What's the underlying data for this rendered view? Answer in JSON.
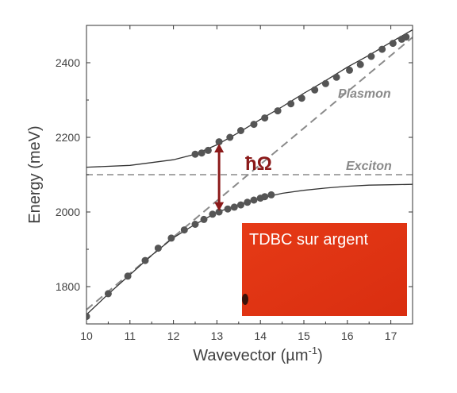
{
  "chart_data": {
    "type": "scatter",
    "xlabel_main": "Wavevector (µm",
    "xlabel_sup": "-1",
    "xlabel_end": ")",
    "ylabel": "Energy (meV)",
    "xlim": [
      10,
      17.5
    ],
    "ylim": [
      1700,
      2500
    ],
    "xticks": [
      "10",
      "11",
      "12",
      "13",
      "14",
      "15",
      "16",
      "17"
    ],
    "yticks": [
      "1800",
      "2000",
      "2200",
      "2400"
    ],
    "xtick_values": [
      10,
      11,
      12,
      13,
      14,
      15,
      16,
      17
    ],
    "ytick_values": [
      1800,
      2000,
      2200,
      2400
    ],
    "upper_branch_points": [
      {
        "x": 12.5,
        "y": 2155
      },
      {
        "x": 12.65,
        "y": 2158
      },
      {
        "x": 12.8,
        "y": 2165
      },
      {
        "x": 13.05,
        "y": 2188
      },
      {
        "x": 13.3,
        "y": 2200
      },
      {
        "x": 13.55,
        "y": 2218
      },
      {
        "x": 13.85,
        "y": 2235
      },
      {
        "x": 14.1,
        "y": 2252
      },
      {
        "x": 14.4,
        "y": 2271
      },
      {
        "x": 14.7,
        "y": 2290
      },
      {
        "x": 14.95,
        "y": 2305
      },
      {
        "x": 15.25,
        "y": 2327
      },
      {
        "x": 15.5,
        "y": 2344
      },
      {
        "x": 15.75,
        "y": 2361
      },
      {
        "x": 16.05,
        "y": 2380
      },
      {
        "x": 16.3,
        "y": 2395
      },
      {
        "x": 16.55,
        "y": 2417
      },
      {
        "x": 16.8,
        "y": 2436
      },
      {
        "x": 17.05,
        "y": 2452
      },
      {
        "x": 17.25,
        "y": 2463
      },
      {
        "x": 17.35,
        "y": 2469
      }
    ],
    "lower_branch_points": [
      {
        "x": 10.0,
        "y": 1720
      },
      {
        "x": 10.5,
        "y": 1781
      },
      {
        "x": 10.95,
        "y": 1828
      },
      {
        "x": 11.35,
        "y": 1870
      },
      {
        "x": 11.65,
        "y": 1903
      },
      {
        "x": 11.95,
        "y": 1930
      },
      {
        "x": 12.25,
        "y": 1952
      },
      {
        "x": 12.5,
        "y": 1967
      },
      {
        "x": 12.7,
        "y": 1980
      },
      {
        "x": 12.9,
        "y": 1994
      },
      {
        "x": 13.05,
        "y": 2000
      },
      {
        "x": 13.25,
        "y": 2008
      },
      {
        "x": 13.4,
        "y": 2013
      },
      {
        "x": 13.55,
        "y": 2019
      },
      {
        "x": 13.7,
        "y": 2026
      },
      {
        "x": 13.85,
        "y": 2032
      },
      {
        "x": 14.0,
        "y": 2037
      },
      {
        "x": 14.1,
        "y": 2041
      },
      {
        "x": 14.25,
        "y": 2046
      }
    ],
    "exciton_energy": 2100,
    "plasmon_line": [
      {
        "x": 10,
        "y": 1738
      },
      {
        "x": 17.5,
        "y": 2468
      }
    ],
    "upper_fit": [
      {
        "x": 10,
        "y": 2120
      },
      {
        "x": 11,
        "y": 2125
      },
      {
        "x": 12,
        "y": 2140
      },
      {
        "x": 12.5,
        "y": 2155
      },
      {
        "x": 13,
        "y": 2180
      },
      {
        "x": 13.5,
        "y": 2213
      },
      {
        "x": 14,
        "y": 2248
      },
      {
        "x": 14.5,
        "y": 2282
      },
      {
        "x": 15,
        "y": 2318
      },
      {
        "x": 15.5,
        "y": 2352
      },
      {
        "x": 16,
        "y": 2388
      },
      {
        "x": 16.5,
        "y": 2420
      },
      {
        "x": 17,
        "y": 2455
      },
      {
        "x": 17.5,
        "y": 2488
      }
    ],
    "lower_fit": [
      {
        "x": 10,
        "y": 1725
      },
      {
        "x": 10.5,
        "y": 1780
      },
      {
        "x": 11,
        "y": 1832
      },
      {
        "x": 11.5,
        "y": 1884
      },
      {
        "x": 12,
        "y": 1931
      },
      {
        "x": 12.5,
        "y": 1967
      },
      {
        "x": 13,
        "y": 1999
      },
      {
        "x": 13.5,
        "y": 2020
      },
      {
        "x": 14,
        "y": 2037
      },
      {
        "x": 14.5,
        "y": 2050
      },
      {
        "x": 15,
        "y": 2058
      },
      {
        "x": 15.5,
        "y": 2064
      },
      {
        "x": 16,
        "y": 2069
      },
      {
        "x": 16.5,
        "y": 2072
      },
      {
        "x": 17,
        "y": 2073
      },
      {
        "x": 17.5,
        "y": 2074
      }
    ],
    "rabi_splitting": {
      "x": 13.05,
      "y_low": 2003,
      "y_high": 2183,
      "label": "ħΩ"
    },
    "annotations": {
      "plasmon": "Plasmon",
      "exciton": "Exciton"
    },
    "inset": {
      "label": "TDBC sur argent",
      "color": "#e23414"
    },
    "colors": {
      "points": "#555555",
      "fit": "#333333",
      "dashed": "#8a8a8a",
      "arrow": "#8b1a1a"
    }
  }
}
